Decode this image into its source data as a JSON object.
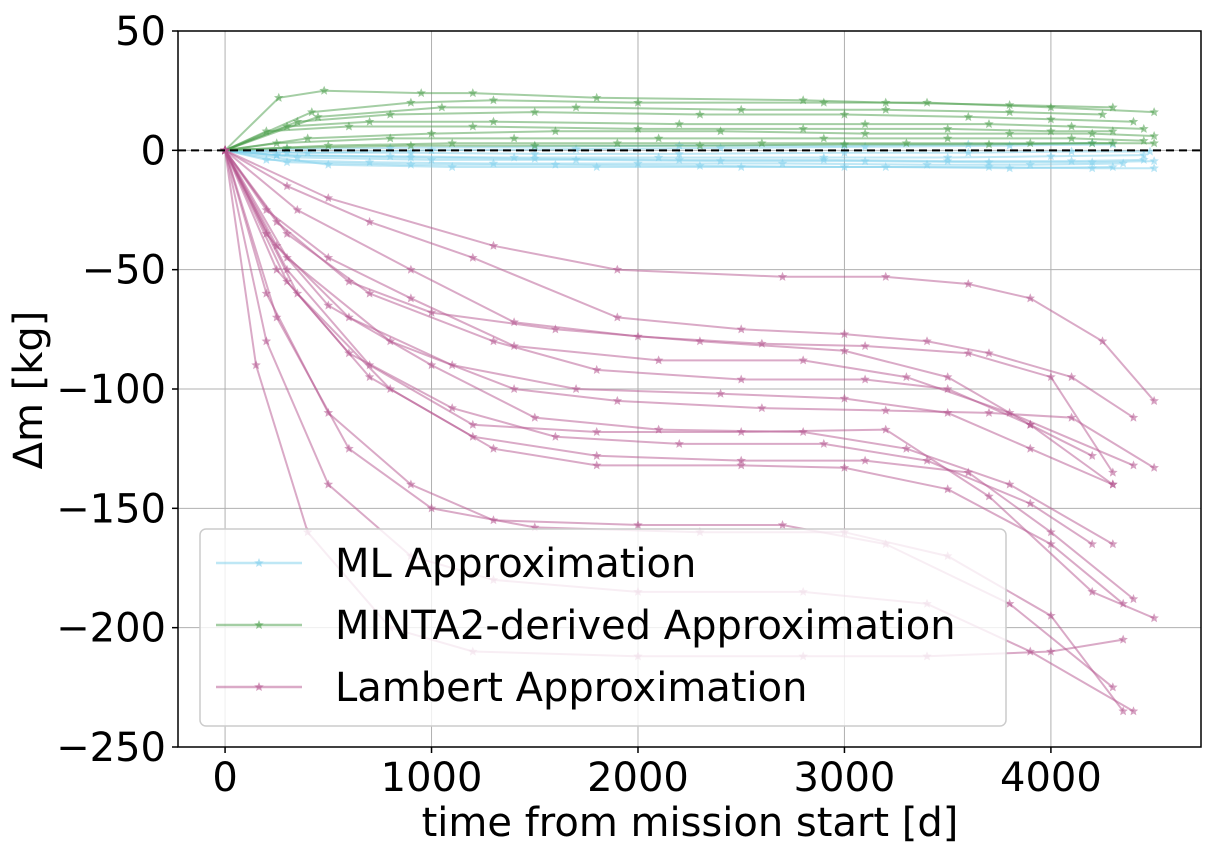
{
  "chart_data": {
    "type": "line",
    "title": "",
    "xlabel": "time from mission start [d]",
    "ylabel": "Δm [kg]",
    "xlim": [
      -228,
      4727
    ],
    "ylim": [
      -250,
      50
    ],
    "xticks": [
      0,
      1000,
      2000,
      3000,
      4000
    ],
    "xtick_labels": [
      "0",
      "1000",
      "2000",
      "3000",
      "4000"
    ],
    "yticks": [
      50,
      0,
      -50,
      -100,
      -150,
      -200,
      -250
    ],
    "ytick_labels": [
      "50",
      "0",
      "−50",
      "−100",
      "−150",
      "−200",
      "−250"
    ],
    "grid": true,
    "reference_line": {
      "y": 0,
      "style": "dashed",
      "color": "#000000"
    },
    "legend": {
      "placement": "lower-left",
      "entries": [
        {
          "label": "ML Approximation",
          "color": "#7ecfec"
        },
        {
          "label": "MINTA2-derived Approximation",
          "color": "#4a9e4a"
        },
        {
          "label": "Lambert Approximation",
          "color": "#b5558f"
        }
      ]
    },
    "marker": "star",
    "series": [
      {
        "name": "ML Approximation",
        "color": "#7ecfec",
        "lines": [
          {
            "x": [
              0,
              300,
              900,
              1500,
              2200,
              3000,
              3600,
              4100,
              4480
            ],
            "y": [
              0,
              -1,
              -1,
              -1.5,
              -1.5,
              -1,
              -1,
              -0.5,
              -0.5
            ]
          },
          {
            "x": [
              0,
              250,
              800,
              1400,
              2100,
              2900,
              3500,
              4000,
              4450
            ],
            "y": [
              0,
              -2,
              -2.5,
              -3,
              -3,
              -3,
              -3,
              -2.5,
              -2
            ]
          },
          {
            "x": [
              0,
              350,
              1000,
              1700,
              2400,
              3100,
              3700,
              4200,
              4500
            ],
            "y": [
              0,
              -3,
              -4,
              -4,
              -4.5,
              -4.5,
              -5,
              -5,
              -4.5
            ]
          },
          {
            "x": [
              0,
              200,
              700,
              1300,
              2000,
              2700,
              3400,
              3900,
              4350
            ],
            "y": [
              0,
              -4,
              -5,
              -5.5,
              -5.5,
              -5.5,
              -6,
              -6,
              -5.5
            ]
          },
          {
            "x": [
              0,
              300,
              900,
              1600,
              2300,
              3000,
              3700,
              4200,
              4500
            ],
            "y": [
              0,
              -5,
              -6,
              -6,
              -6.5,
              -7,
              -7,
              -7.5,
              -7.5
            ]
          },
          {
            "x": [
              0,
              500,
              1100,
              1800,
              2500,
              3200,
              3800,
              4300
            ],
            "y": [
              0,
              -6,
              -7,
              -7,
              -7,
              -7,
              -7.5,
              -7
            ]
          },
          {
            "x": [
              0,
              250,
              900,
              1500,
              2200,
              2900,
              3500,
              4100,
              4450
            ],
            "y": [
              0,
              -2,
              -3,
              -3.5,
              -4,
              -4,
              -4.5,
              -4.5,
              -4
            ]
          },
          {
            "x": [
              0,
              400,
              1000,
              1700,
              2400,
              3100,
              3800,
              4300
            ],
            "y": [
              0,
              -1,
              0,
              0.5,
              1,
              1.5,
              2,
              2.5
            ]
          },
          {
            "x": [
              0,
              300,
              800,
              1500,
              2200,
              3000,
              3600,
              4200
            ],
            "y": [
              0,
              0.5,
              1,
              1.5,
              2,
              2,
              2.5,
              3
            ]
          }
        ]
      },
      {
        "name": "MINTA2-derived Approximation",
        "color": "#4a9e4a",
        "lines": [
          {
            "x": [
              0,
              260,
              480,
              950,
              1200,
              1800,
              2800,
              3200,
              3800,
              4300
            ],
            "y": [
              0,
              22,
              25,
              24,
              24,
              22,
              21,
              20,
              19,
              18
            ]
          },
          {
            "x": [
              0,
              420,
              900,
              1300,
              2000,
              2900,
              3400,
              4000,
              4500
            ],
            "y": [
              0,
              16,
              20,
              21,
              20,
              20,
              20,
              18,
              16
            ]
          },
          {
            "x": [
              0,
              350,
              800,
              1500,
              2300,
              3000,
              3600,
              4000,
              4400
            ],
            "y": [
              0,
              12,
              15,
              16,
              15,
              15,
              14,
              13,
              12
            ]
          },
          {
            "x": [
              0,
              300,
              700,
              1300,
              2200,
              3100,
              3700,
              4100,
              4450
            ],
            "y": [
              0,
              10,
              12,
              12,
              11,
              11,
              11,
              10,
              9
            ]
          },
          {
            "x": [
              0,
              200,
              600,
              1200,
              2000,
              2800,
              3500,
              4000,
              4300
            ],
            "y": [
              0,
              8,
              10,
              10,
              9,
              9,
              9,
              8,
              8
            ]
          },
          {
            "x": [
              0,
              400,
              1000,
              1600,
              2400,
              3100,
              3800,
              4200,
              4500
            ],
            "y": [
              0,
              5,
              7,
              8,
              8,
              7,
              7,
              7,
              6
            ]
          },
          {
            "x": [
              0,
              250,
              800,
              1400,
              2100,
              2900,
              3500,
              4100,
              4450
            ],
            "y": [
              0,
              3,
              5,
              5,
              5,
              5,
              5,
              5,
              4
            ]
          },
          {
            "x": [
              0,
              500,
              1100,
              1900,
              2600,
              3300,
              3900,
              4300
            ],
            "y": [
              0,
              2,
              3,
              3,
              3,
              3,
              3,
              3
            ]
          },
          {
            "x": [
              0,
              300,
              900,
              1500,
              2300,
              3000,
              3700,
              4200,
              4500
            ],
            "y": [
              0,
              1,
              2,
              2,
              2,
              2.5,
              2.5,
              3,
              3
            ]
          },
          {
            "x": [
              0,
              450,
              1050,
              1700,
              2500,
              3200,
              3800,
              4250
            ],
            "y": [
              0,
              14,
              18,
              18,
              17,
              17,
              16,
              15
            ]
          }
        ]
      },
      {
        "name": "Lambert Approximation",
        "color": "#b5558f",
        "lines": [
          {
            "x": [
              0,
              500,
              1300,
              1900,
              2700,
              3200,
              3600,
              3900,
              4250,
              4500
            ],
            "y": [
              0,
              -20,
              -40,
              -50,
              -53,
              -53,
              -56,
              -62,
              -80,
              -105
            ]
          },
          {
            "x": [
              0,
              300,
              700,
              1200,
              1900,
              2500,
              3000,
              3400,
              3700,
              4100,
              4400
            ],
            "y": [
              0,
              -15,
              -30,
              -45,
              -70,
              -75,
              -77,
              -80,
              -85,
              -95,
              -112
            ]
          },
          {
            "x": [
              0,
              350,
              900,
              1400,
              2000,
              2600,
              3100,
              3600,
              4000,
              4300
            ],
            "y": [
              0,
              -25,
              -50,
              -72,
              -78,
              -81,
              -82,
              -85,
              -95,
              -135
            ]
          },
          {
            "x": [
              0,
              250,
              600,
              1000,
              1600,
              2300,
              3000,
              3500,
              3900,
              4300
            ],
            "y": [
              0,
              -30,
              -55,
              -68,
              -75,
              -80,
              -84,
              -95,
              -115,
              -140
            ]
          },
          {
            "x": [
              0,
              200,
              500,
              900,
              1400,
              2100,
              2800,
              3300,
              3800,
              4400
            ],
            "y": [
              0,
              -25,
              -45,
              -62,
              -82,
              -88,
              -88,
              -95,
              -110,
              -132
            ]
          },
          {
            "x": [
              0,
              300,
              700,
              1300,
              1800,
              2500,
              3100,
              3500,
              3900,
              4200
            ],
            "y": [
              0,
              -35,
              -60,
              -80,
              -92,
              -96,
              -96,
              -100,
              -115,
              -128
            ]
          },
          {
            "x": [
              0,
              250,
              600,
              1100,
              1700,
              2400,
              3000,
              3500,
              3900,
              4300
            ],
            "y": [
              0,
              -40,
              -70,
              -90,
              -100,
              -102,
              -104,
              -110,
              -125,
              -140
            ]
          },
          {
            "x": [
              0,
              300,
              800,
              1400,
              1900,
              2600,
              3200,
              3700,
              4100,
              4500
            ],
            "y": [
              0,
              -45,
              -80,
              -100,
              -105,
              -108,
              -109,
              -110,
              -112,
              -133
            ]
          },
          {
            "x": [
              0,
              200,
              500,
              1000,
              1500,
              2100,
              2800,
              3300,
              3800,
              4300
            ],
            "y": [
              0,
              -35,
              -65,
              -90,
              -112,
              -117,
              -118,
              -125,
              -140,
              -165
            ]
          },
          {
            "x": [
              0,
              250,
              600,
              1100,
              1600,
              2200,
              2900,
              3400,
              3900,
              4200
            ],
            "y": [
              0,
              -50,
              -85,
              -108,
              -120,
              -123,
              -123,
              -130,
              -148,
              -165
            ]
          },
          {
            "x": [
              0,
              300,
              700,
              1200,
              1800,
              2500,
              3100,
              3600,
              4000,
              4400
            ],
            "y": [
              0,
              -55,
              -95,
              -120,
              -128,
              -130,
              -130,
              -135,
              -160,
              -188
            ]
          },
          {
            "x": [
              0,
              350,
              800,
              1300,
              1800,
              2500,
              3000,
              3500,
              4000,
              4350
            ],
            "y": [
              0,
              -60,
              -100,
              -125,
              -132,
              -132,
              -133,
              -142,
              -165,
              -190
            ]
          },
          {
            "x": [
              0,
              200,
              500,
              900,
              1300,
              2000,
              2700,
              3200,
              3800,
              4300
            ],
            "y": [
              0,
              -60,
              -110,
              -140,
              -155,
              -157,
              -157,
              -165,
              -190,
              -225
            ]
          },
          {
            "x": [
              0,
              250,
              600,
              1000,
              1500,
              2300,
              3000,
              3500,
              4000,
              4350
            ],
            "y": [
              0,
              -70,
              -125,
              -150,
              -158,
              -160,
              -160,
              -170,
              -195,
              -235
            ]
          },
          {
            "x": [
              0,
              200,
              500,
              900,
              1300,
              2000,
              2800,
              3400,
              3900,
              4400
            ],
            "y": [
              0,
              -80,
              -140,
              -170,
              -180,
              -185,
              -185,
              -190,
              -210,
              -235
            ]
          },
          {
            "x": [
              0,
              150,
              400,
              800,
              1200,
              2000,
              2800,
              3400,
              4000,
              4350
            ],
            "y": [
              0,
              -90,
              -160,
              -200,
              -210,
              -212,
              -212,
              -212,
              -210,
              -205
            ]
          },
          {
            "x": [
              0,
              300,
              700,
              1200,
              1800,
              2500,
              3200,
              3700,
              4200,
              4500
            ],
            "y": [
              0,
              -50,
              -90,
              -115,
              -118,
              -118,
              -117,
              -145,
              -185,
              -196
            ]
          }
        ]
      }
    ]
  }
}
